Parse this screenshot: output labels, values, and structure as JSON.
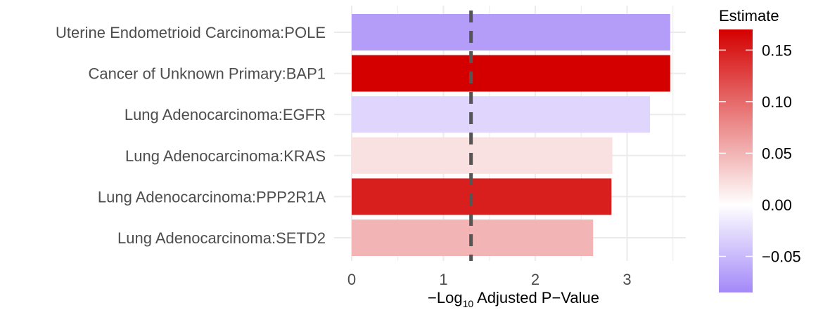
{
  "chart_data": {
    "type": "bar",
    "orientation": "horizontal",
    "categories": [
      "Uterine Endometrioid Carcinoma:POLE",
      "Cancer of Unknown Primary:BAP1",
      "Lung Adenocarcinoma:EGFR",
      "Lung Adenocarcinoma:KRAS",
      "Lung Adenocarcinoma:PPP2R1A",
      "Lung Adenocarcinoma:SETD2"
    ],
    "values": [
      3.47,
      3.47,
      3.25,
      2.84,
      2.83,
      2.63
    ],
    "estimates": [
      -0.07,
      0.17,
      -0.03,
      0.02,
      0.15,
      0.05
    ],
    "xlabel": {
      "prefix": "−Log",
      "subscript": "10",
      "suffix": " Adjusted P−Value"
    },
    "xlim": [
      0,
      3.6
    ],
    "xticks": [
      0,
      1,
      2,
      3
    ],
    "xtick_labels": [
      "0",
      "1",
      "2",
      "3"
    ],
    "threshold_line": 1.3,
    "threshold_style": "dashed",
    "grid": true,
    "legend": {
      "title": "Estimate",
      "placement": "right",
      "range": [
        -0.085,
        0.17
      ],
      "ticks": [
        -0.05,
        0.0,
        0.05,
        0.1,
        0.15
      ],
      "tick_labels": [
        "−0.05",
        "0.00",
        "0.05",
        "0.10",
        "0.15"
      ]
    },
    "colors": {
      "low": "#a388f8",
      "mid": "#ffffff",
      "high": "#d40000",
      "grid": "#ebebeb",
      "threshold": "#555555"
    }
  }
}
